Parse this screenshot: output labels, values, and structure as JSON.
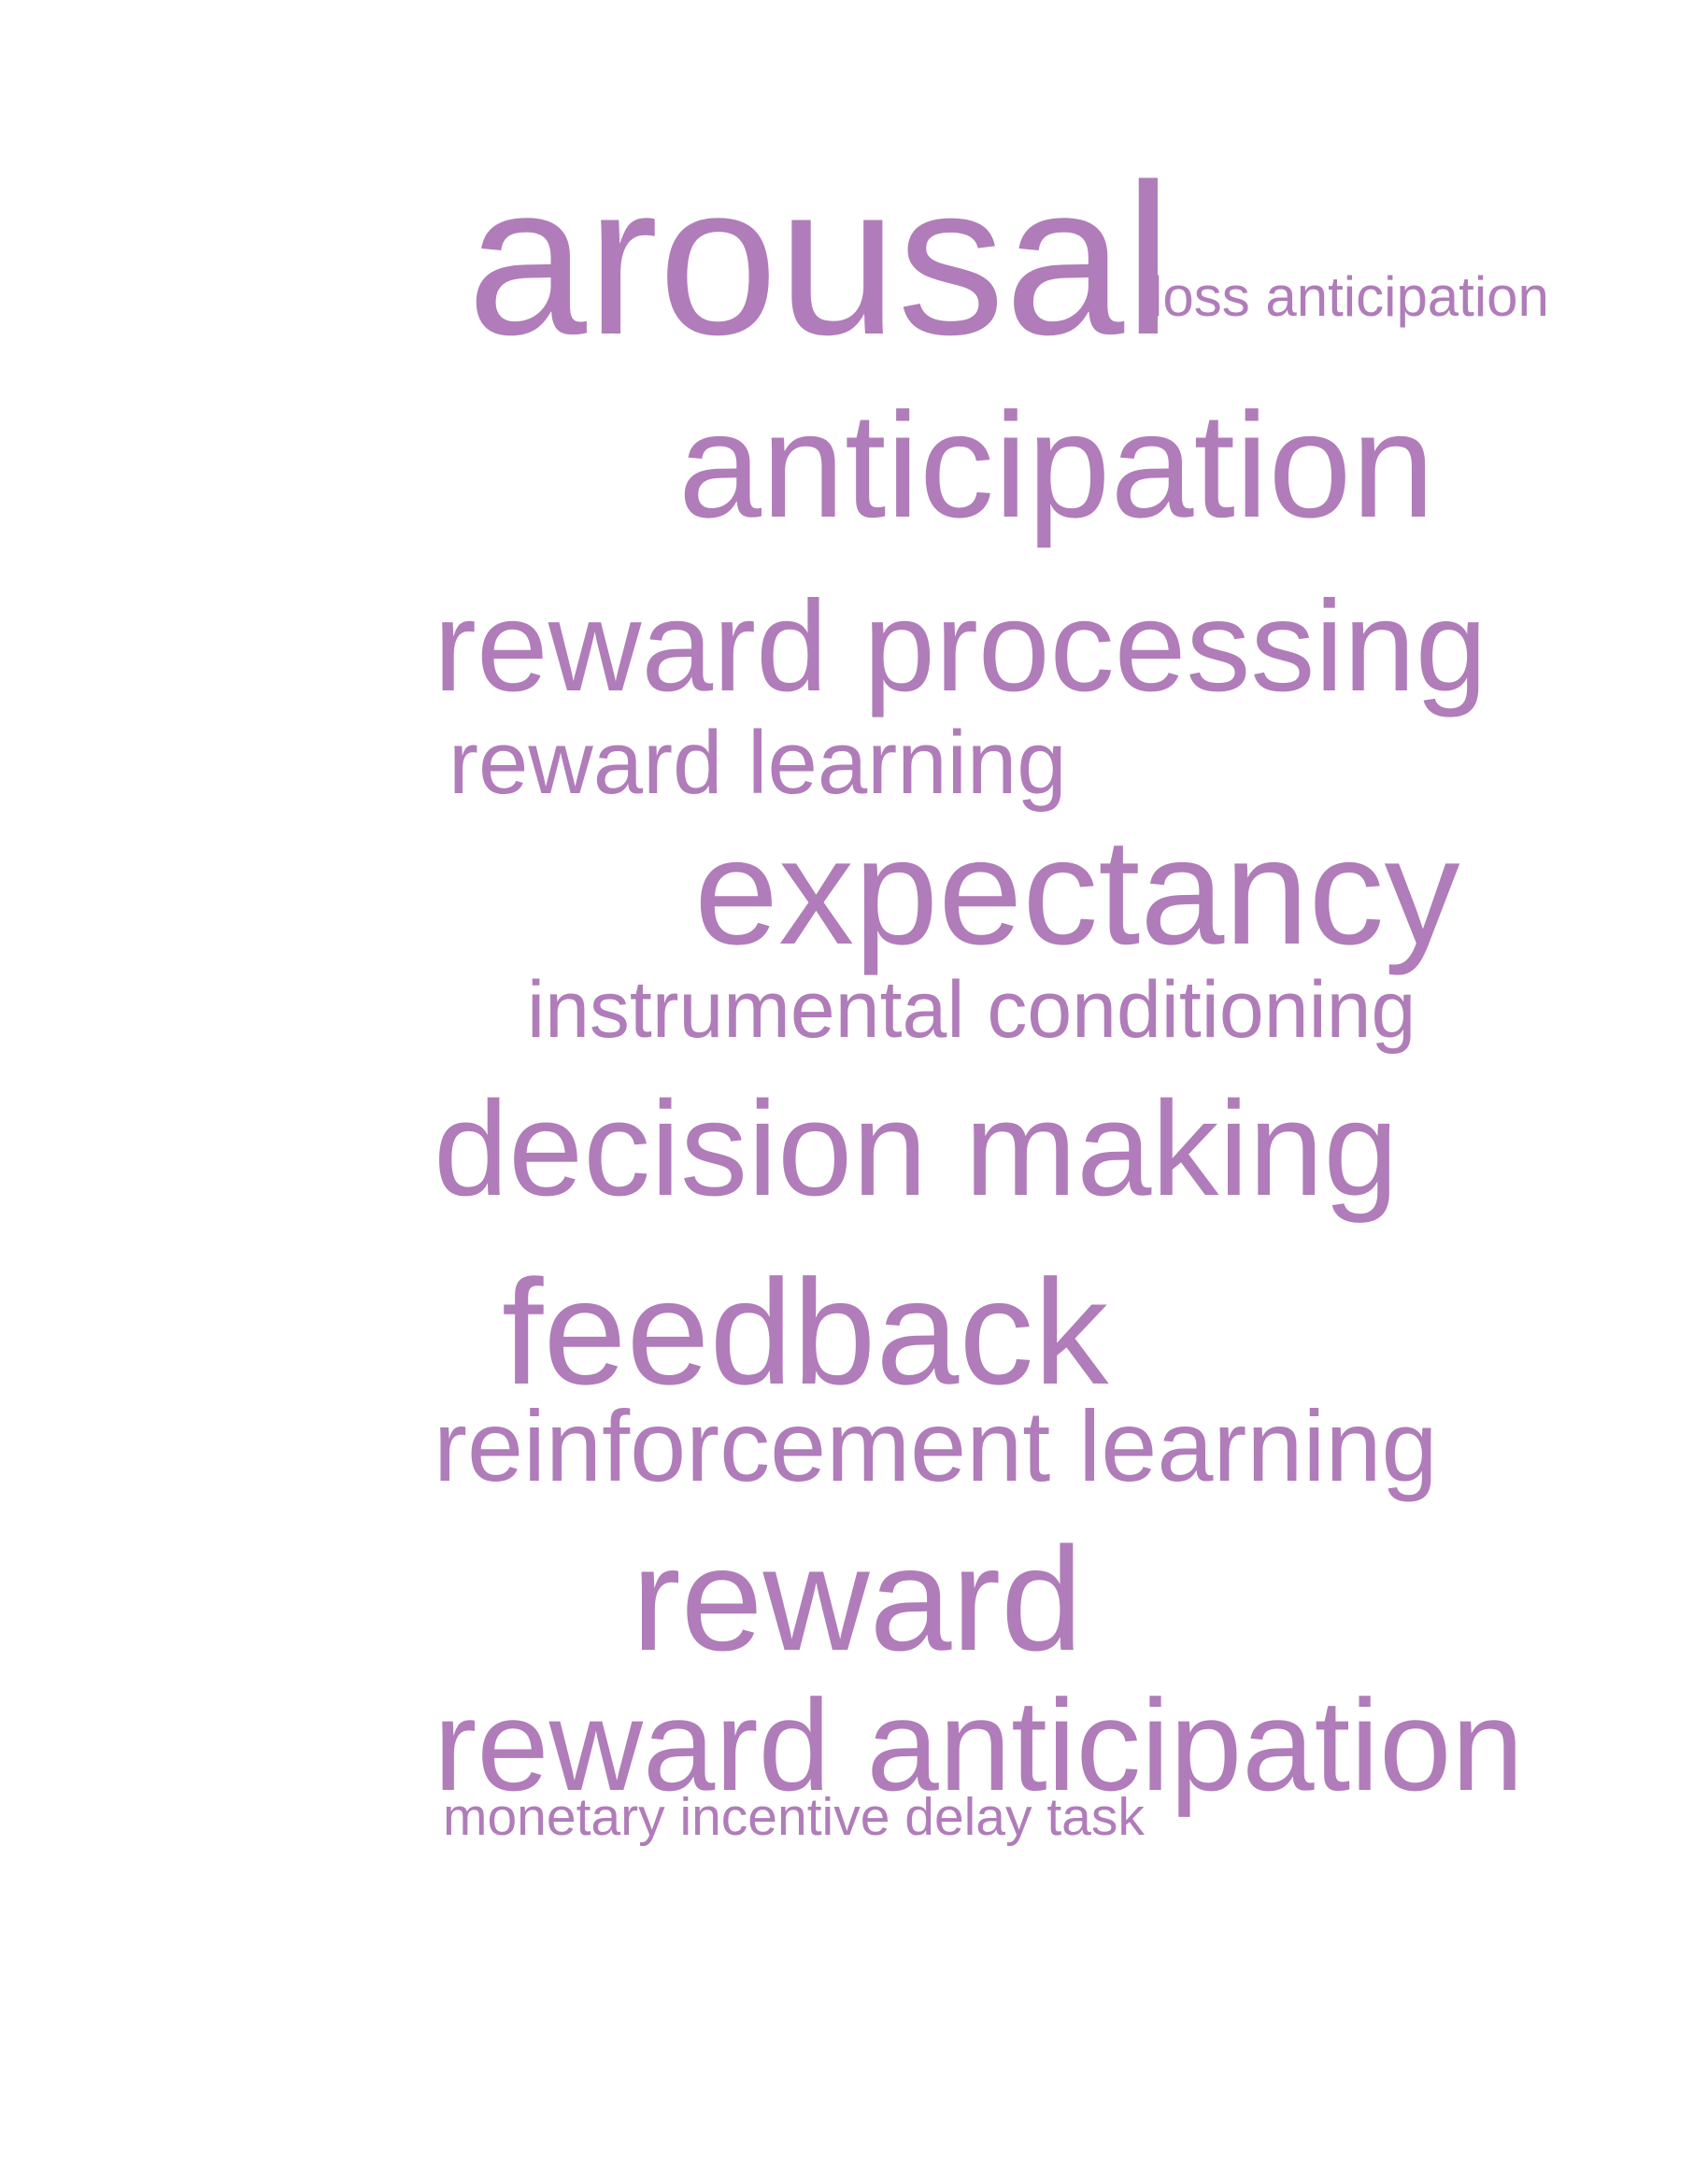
{
  "style": {
    "word_color": "#b07cb9",
    "background": "#ffffff"
  },
  "words": [
    {
      "text": "arousal"
    },
    {
      "text": "loss anticipation"
    },
    {
      "text": "anticipation"
    },
    {
      "text": "reward processing"
    },
    {
      "text": "reward learning"
    },
    {
      "text": "expectancy"
    },
    {
      "text": "instrumental conditioning"
    },
    {
      "text": "decision making"
    },
    {
      "text": "feedback"
    },
    {
      "text": "reinforcement learning"
    },
    {
      "text": "reward"
    },
    {
      "text": "reward anticipation"
    },
    {
      "text": "monetary incentive delay task"
    }
  ]
}
